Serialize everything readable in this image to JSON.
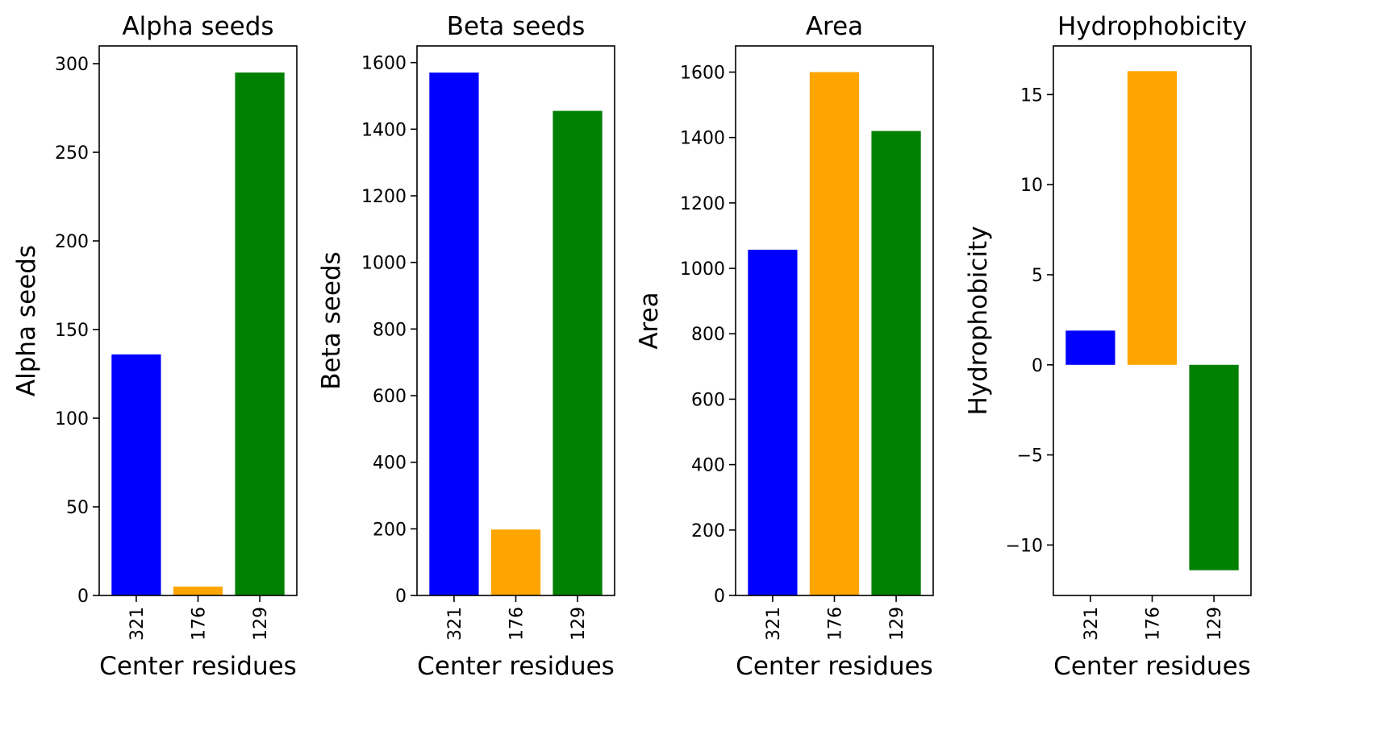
{
  "chart_data": [
    {
      "type": "bar",
      "title": "Alpha seeds",
      "xlabel": "Center residues",
      "ylabel": "Alpha seeds",
      "categories": [
        "321",
        "176",
        "129"
      ],
      "values": [
        136,
        5,
        295
      ],
      "colors": [
        "#0000ff",
        "#ffa500",
        "#008000"
      ],
      "ylim": [
        0,
        310
      ],
      "yticks": [
        0,
        50,
        100,
        150,
        200,
        250,
        300
      ],
      "ytick_labels": [
        "0",
        "50",
        "100",
        "150",
        "200",
        "250",
        "300"
      ],
      "grid": false
    },
    {
      "type": "bar",
      "title": "Beta seeds",
      "xlabel": "Center residues",
      "ylabel": "Beta seeds",
      "categories": [
        "321",
        "176",
        "129"
      ],
      "values": [
        1570,
        198,
        1455
      ],
      "colors": [
        "#0000ff",
        "#ffa500",
        "#008000"
      ],
      "ylim": [
        0,
        1650
      ],
      "yticks": [
        0,
        200,
        400,
        600,
        800,
        1000,
        1200,
        1400,
        1600
      ],
      "ytick_labels": [
        "0",
        "200",
        "400",
        "600",
        "800",
        "1000",
        "1200",
        "1400",
        "1600"
      ],
      "grid": false
    },
    {
      "type": "bar",
      "title": "Area",
      "xlabel": "Center residues",
      "ylabel": "Area",
      "categories": [
        "321",
        "176",
        "129"
      ],
      "values": [
        1057,
        1600,
        1420
      ],
      "colors": [
        "#0000ff",
        "#ffa500",
        "#008000"
      ],
      "ylim": [
        0,
        1680
      ],
      "yticks": [
        0,
        200,
        400,
        600,
        800,
        1000,
        1200,
        1400,
        1600
      ],
      "ytick_labels": [
        "0",
        "200",
        "400",
        "600",
        "800",
        "1000",
        "1200",
        "1400",
        "1600"
      ],
      "grid": false
    },
    {
      "type": "bar",
      "title": "Hydrophobicity",
      "xlabel": "Center residues",
      "ylabel": "Hydrophobicity",
      "categories": [
        "321",
        "176",
        "129"
      ],
      "values": [
        1.9,
        16.3,
        -11.4
      ],
      "colors": [
        "#0000ff",
        "#ffa500",
        "#008000"
      ],
      "ylim": [
        -12.8,
        17.7
      ],
      "yticks": [
        -10,
        -5,
        0,
        5,
        10,
        15
      ],
      "ytick_labels": [
        "−10",
        "−5",
        "0",
        "5",
        "10",
        "15"
      ],
      "grid": false
    }
  ]
}
